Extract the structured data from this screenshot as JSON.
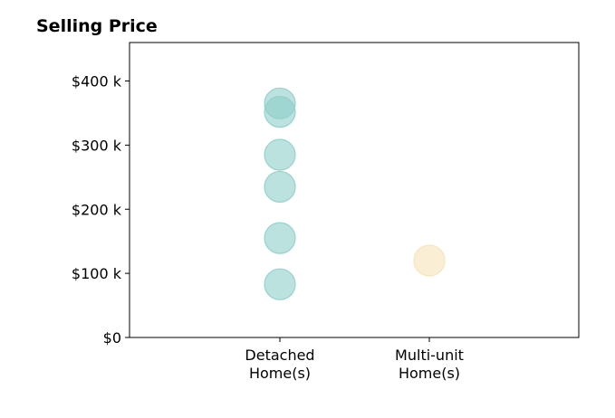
{
  "chart_data": {
    "type": "scatter",
    "title": "Selling Price",
    "xlabel": "",
    "ylabel": "",
    "categories": [
      [
        "Detached",
        "Home(s)"
      ],
      [
        "Multi-unit",
        "Home(s)"
      ]
    ],
    "y_ticks": [
      0,
      100,
      200,
      300,
      400
    ],
    "y_tick_labels": [
      "$0",
      "$100 k",
      "$200 k",
      "$300 k",
      "$400 k"
    ],
    "ylim": [
      0,
      460
    ],
    "grid": false,
    "series": [
      {
        "category_index": 0,
        "color": "#8ecfc9",
        "values": [
          365,
          352,
          285,
          235,
          155,
          83
        ]
      },
      {
        "category_index": 1,
        "color": "#f6e2b8",
        "values": [
          120
        ]
      }
    ]
  }
}
